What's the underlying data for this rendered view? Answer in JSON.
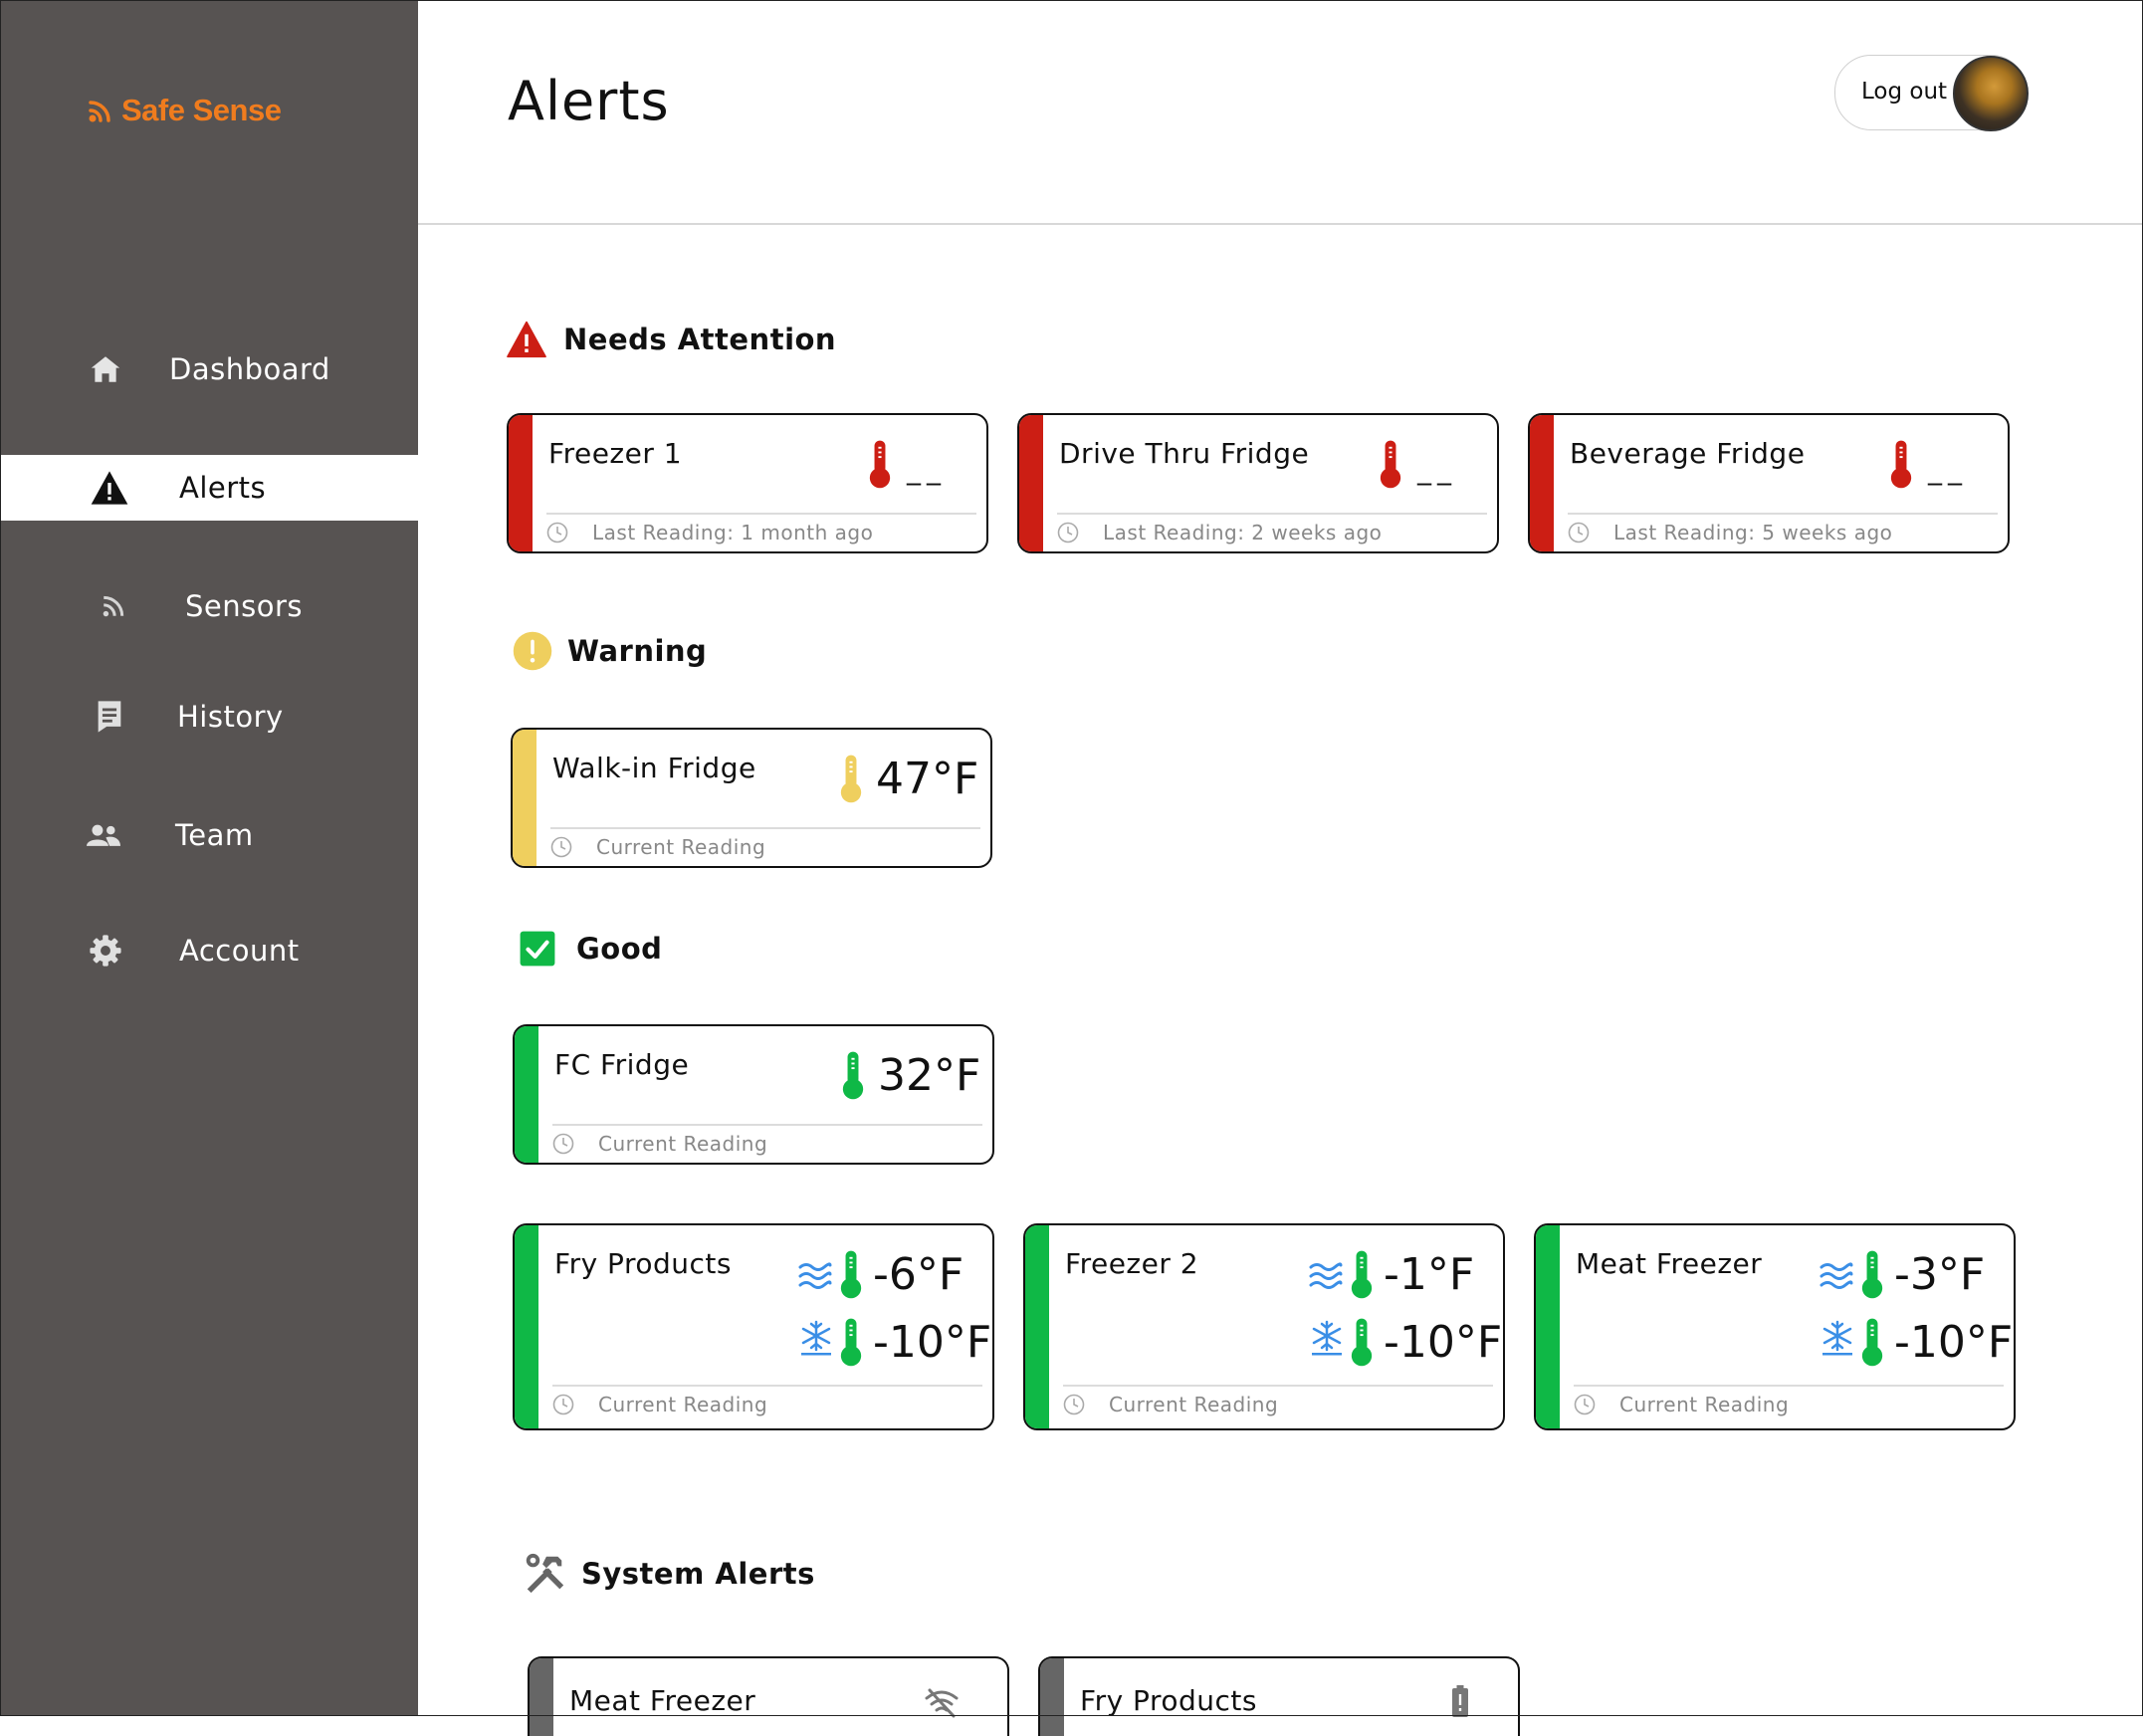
{
  "app": {
    "logo_text": "Safe Sense",
    "brand_color": "#f07c1e"
  },
  "sidebar": {
    "items": [
      {
        "label": "Dashboard",
        "icon": "home-icon"
      },
      {
        "label": "Alerts",
        "icon": "alert-triangle-icon",
        "active": true
      },
      {
        "label": "Sensors",
        "icon": "rss-icon"
      },
      {
        "label": "History",
        "icon": "history-icon"
      },
      {
        "label": "Team",
        "icon": "team-icon"
      },
      {
        "label": "Account",
        "icon": "gear-icon"
      }
    ]
  },
  "header": {
    "title": "Alerts",
    "logout_label": "Log out"
  },
  "colors": {
    "danger": "#cc1e14",
    "warning": "#efcf5e",
    "good": "#0fb846",
    "system": "#666666",
    "freeze_blue": "#3a8ee6"
  },
  "sections": {
    "attention": {
      "title": "Needs Attention",
      "cards": [
        {
          "name": "Freezer 1",
          "reading": "__",
          "footer": "Last Reading: 1 month ago"
        },
        {
          "name": "Drive Thru Fridge",
          "reading": "__",
          "footer": "Last Reading: 2 weeks ago"
        },
        {
          "name": "Beverage Fridge",
          "reading": "__",
          "footer": "Last Reading: 5 weeks ago"
        }
      ]
    },
    "warning": {
      "title": "Warning",
      "cards": [
        {
          "name": "Walk-in Fridge",
          "reading": "47°F",
          "footer": "Current Reading"
        }
      ]
    },
    "good": {
      "title": "Good",
      "cards": [
        {
          "name": "FC Fridge",
          "reading": "32°F",
          "footer": "Current Reading"
        }
      ],
      "dual_cards": [
        {
          "name": "Fry Products",
          "air": "-6°F",
          "freeze": "-10°F",
          "footer": "Current Reading"
        },
        {
          "name": "Freezer 2",
          "air": "-1°F",
          "freeze": "-10°F",
          "footer": "Current Reading"
        },
        {
          "name": "Meat Freezer",
          "air": "-3°F",
          "freeze": "-10°F",
          "footer": "Current Reading"
        }
      ]
    },
    "system": {
      "title": "System Alerts",
      "cards": [
        {
          "name": "Meat Freezer",
          "icon": "wifi-off-icon"
        },
        {
          "name": "Fry Products",
          "icon": "battery-low-icon"
        }
      ]
    }
  }
}
